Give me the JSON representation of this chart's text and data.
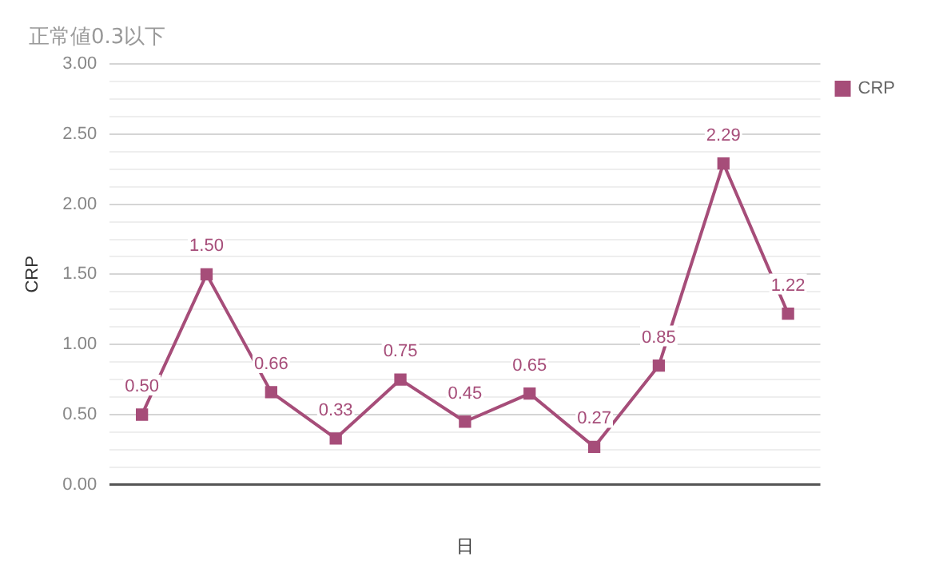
{
  "chart_data": {
    "type": "line",
    "title": "正常値0.3以下",
    "xlabel": "日",
    "ylabel": "CRP",
    "categories": [
      null,
      null,
      null,
      null,
      null,
      null,
      null,
      null,
      null,
      null,
      null
    ],
    "series": [
      {
        "name": "CRP",
        "color": "#a64d79",
        "values": [
          0.5,
          1.5,
          0.66,
          0.33,
          0.75,
          0.45,
          0.65,
          0.27,
          0.85,
          2.29,
          1.22
        ],
        "value_labels": [
          "0.50",
          "1.50",
          "0.66",
          "0.33",
          "0.75",
          "0.45",
          "0.65",
          "0.27",
          "0.85",
          "2.29",
          "1.22"
        ]
      }
    ],
    "ylim": [
      0,
      3
    ],
    "yticks": [
      {
        "value": 0,
        "label": "0.00"
      },
      {
        "value": 0.125,
        "label": null
      },
      {
        "value": 0.25,
        "label": null
      },
      {
        "value": 0.375,
        "label": null
      },
      {
        "value": 0.5,
        "label": "0.50"
      },
      {
        "value": 0.625,
        "label": null
      },
      {
        "value": 0.75,
        "label": null
      },
      {
        "value": 0.875,
        "label": null
      },
      {
        "value": 1,
        "label": "1.00"
      },
      {
        "value": 1.125,
        "label": null
      },
      {
        "value": 1.25,
        "label": null
      },
      {
        "value": 1.375,
        "label": null
      },
      {
        "value": 1.5,
        "label": "1.50"
      },
      {
        "value": 1.625,
        "label": null
      },
      {
        "value": 1.75,
        "label": null
      },
      {
        "value": 1.875,
        "label": null
      },
      {
        "value": 2,
        "label": "2.00"
      },
      {
        "value": 2.125,
        "label": null
      },
      {
        "value": 2.25,
        "label": null
      },
      {
        "value": 2.375,
        "label": null
      },
      {
        "value": 2.5,
        "label": "2.50"
      },
      {
        "value": 2.625,
        "label": null
      },
      {
        "value": 2.75,
        "label": null
      },
      {
        "value": 2.875,
        "label": null
      },
      {
        "value": 3,
        "label": "3.00"
      }
    ],
    "grid": "y",
    "legend": "top right",
    "marker": "square",
    "line_style": "solid"
  }
}
